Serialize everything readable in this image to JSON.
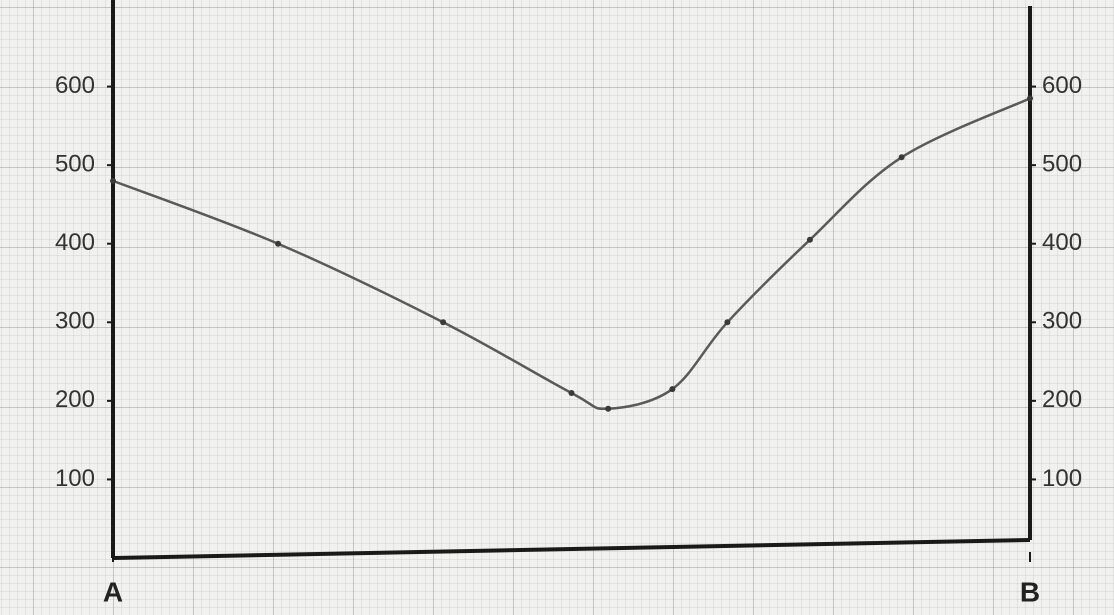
{
  "chart_data": {
    "type": "line",
    "x": [
      0,
      18,
      36,
      50,
      54,
      61,
      67,
      76,
      86,
      100
    ],
    "series": [
      {
        "color": "#5a5a5a",
        "values": [
          480,
          400,
          300,
          210,
          190,
          215,
          300,
          405,
          510,
          585
        ]
      }
    ],
    "xlim": [
      0,
      100
    ],
    "xticks": [
      {
        "value": 0,
        "label": "A"
      },
      {
        "value": 100,
        "label": "B"
      }
    ],
    "ylim": [
      0,
      700
    ],
    "yticks": [
      100,
      200,
      300,
      400,
      500,
      600
    ],
    "y2lim": [
      0,
      700
    ],
    "y2ticks": [
      100,
      200,
      300,
      400,
      500,
      600
    ]
  }
}
